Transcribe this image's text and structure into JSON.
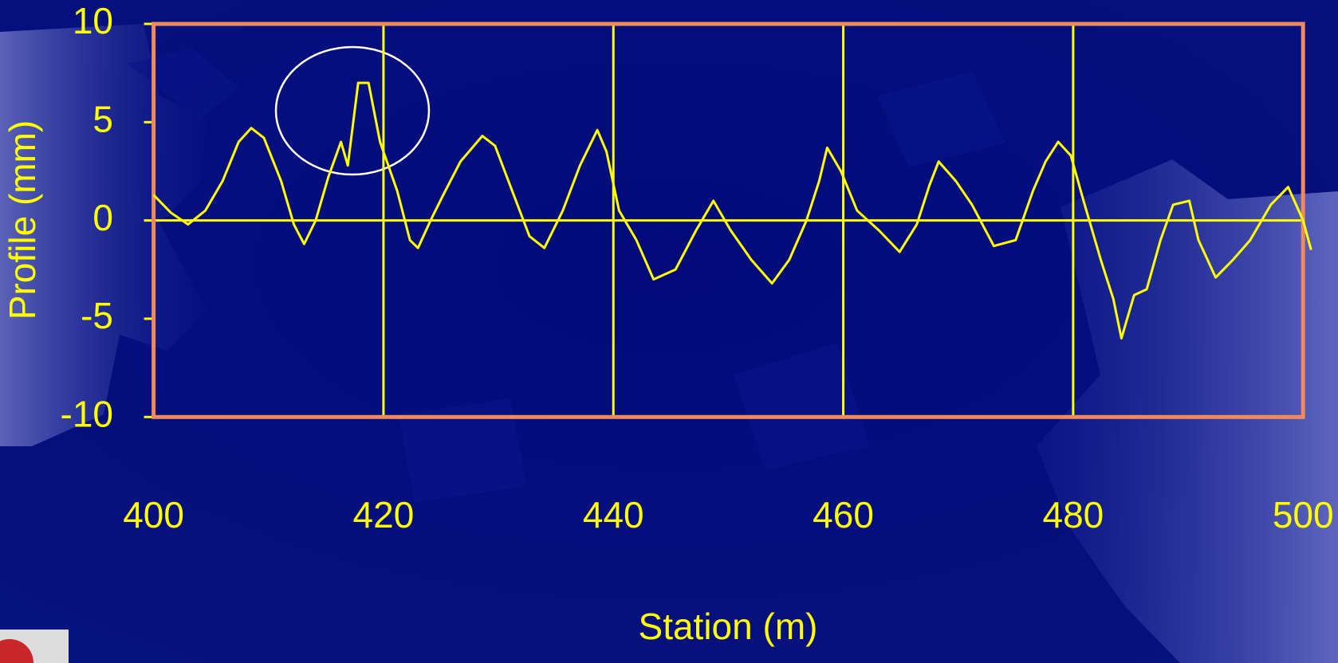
{
  "chart_data": {
    "type": "line",
    "x_label": "Station (m)",
    "y_label": "Profile (mm)",
    "x": [
      400,
      401.5,
      403,
      404.5,
      406,
      407.4,
      408.5,
      409.6,
      411.1,
      412.2,
      413.1,
      414.1,
      415.2,
      416.3,
      416.9,
      417.8,
      418.7,
      419.7,
      421.2,
      422.3,
      423,
      424.1,
      425.2,
      426.7,
      428.6,
      429.7,
      431.2,
      432.7,
      434,
      435.6,
      437.1,
      438.6,
      439.4,
      440.5,
      442,
      443.5,
      445.4,
      447.2,
      448.7,
      450.2,
      452,
      453.8,
      455.3,
      456.8,
      457.9,
      458.6,
      459.8,
      461.2,
      463.1,
      464.9,
      466.4,
      467.5,
      468.3,
      469.8,
      471.2,
      473.1,
      475,
      476.5,
      477.6,
      478.7,
      479.8,
      480.9,
      482.4,
      483.5,
      484.2,
      485.3,
      486.4,
      487.6,
      488.7,
      490.1,
      490.9,
      492.4,
      493.9,
      495.4,
      497.2,
      498.7,
      500,
      500.7
    ],
    "series": [
      {
        "color": "#ffff00",
        "values": [
          1.3,
          0.4,
          -0.2,
          0.5,
          2.0,
          4.0,
          4.7,
          4.2,
          2.0,
          -0.2,
          -1.2,
          0.0,
          2.2,
          4.0,
          2.8,
          7.0,
          7.0,
          4.0,
          1.5,
          -1.0,
          -1.4,
          0.0,
          1.3,
          3.0,
          4.3,
          3.8,
          1.5,
          -0.8,
          -1.4,
          0.5,
          2.8,
          4.6,
          3.5,
          0.5,
          -1.0,
          -3.0,
          -2.5,
          -0.5,
          1.0,
          -0.5,
          -2.0,
          -3.2,
          -2.0,
          0.0,
          2.0,
          3.7,
          2.5,
          0.5,
          -0.5,
          -1.6,
          -0.2,
          1.8,
          3.0,
          2.0,
          0.8,
          -1.3,
          -1.0,
          1.5,
          3.0,
          4.0,
          3.3,
          1.0,
          -2.0,
          -4.0,
          -6.0,
          -3.8,
          -3.5,
          -1.0,
          0.8,
          1.0,
          -1.0,
          -2.9,
          -2.0,
          -1.0,
          0.8,
          1.7,
          0.0,
          -1.5
        ]
      }
    ],
    "xlim": [
      400,
      500
    ],
    "xticks": [
      400,
      420,
      440,
      460,
      480,
      500
    ],
    "ylim": [
      -10,
      10
    ],
    "yticks": [
      10,
      5,
      0,
      -5,
      -10
    ],
    "grid": "x",
    "zero_line": true,
    "frame_color": "#f08a5d",
    "axis_color": "#ffff00"
  }
}
